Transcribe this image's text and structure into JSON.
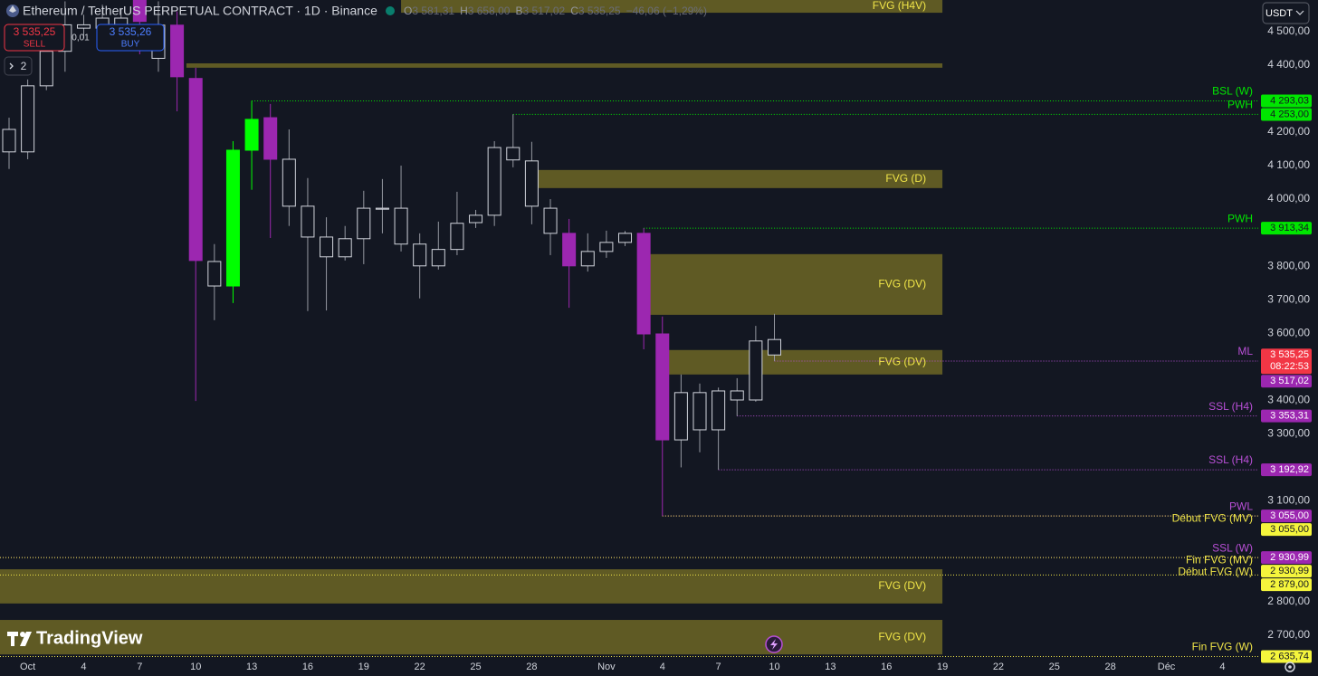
{
  "header": {
    "symbol": "Ethereum / TetherUS PERPETUAL CONTRACT · 1D · Binance",
    "ohlc": [
      {
        "key": "O",
        "value": "3 581,31"
      },
      {
        "key": "H",
        "value": "3 658,00"
      },
      {
        "key": "B",
        "value": "3 517,02"
      },
      {
        "key": "C",
        "value": "3 535,25"
      }
    ],
    "change": "−46,06 (−1,29%)"
  },
  "trade": {
    "sell_price": "3 535,25",
    "sell": "SELL",
    "spread": "0,01",
    "buy_price": "3 535,26",
    "buy": "BUY",
    "indicators": "2"
  },
  "currency": "USDT",
  "brand": "TradingView",
  "chart_data": {
    "type": "candlestick",
    "open": [
      4141,
      4141,
      4338,
      4441,
      4520,
      4510,
      4540,
      4600,
      4420,
      4519,
      4360,
      3741,
      3741,
      4146,
      4243,
      4119,
      3979,
      3887,
      3828,
      3882,
      3973,
      3973,
      3866,
      3801,
      3850,
      3930,
      3952,
      4154,
      4114,
      3973,
      3898,
      3801,
      3844,
      3871,
      3898,
      3598,
      3282,
      3423,
      3312,
      3428,
      3401,
      3581.31
    ],
    "high": [
      4243,
      4357,
      4487,
      4590,
      4550,
      4580,
      4570,
      4620,
      4590,
      4560,
      4392,
      3866,
      4173,
      4293.03,
      4284,
      4208,
      4063,
      3946,
      3920,
      4025,
      4060,
      4100,
      3898,
      3933,
      4022,
      3968,
      4173,
      4253,
      4171,
      4000,
      3941,
      3898,
      3906,
      3905,
      3913.34,
      3650,
      3477,
      3450,
      3438,
      3466,
      3622,
      3658
    ],
    "low": [
      4090,
      4119,
      4325,
      4380,
      4480,
      4490,
      4500,
      4432,
      4380,
      4262,
      3398,
      3639,
      3690,
      4028,
      3884,
      3920,
      3666,
      3668,
      3817,
      3806,
      3898,
      3844,
      3704,
      3790,
      3833,
      3914,
      3920,
      4095,
      3925,
      3833,
      3676,
      3784,
      3825,
      3860,
      3552,
      3055,
      3200,
      3245,
      3192.92,
      3353.31,
      3396,
      3517.02
    ],
    "close": [
      4208,
      4338,
      4441,
      4520,
      4510,
      4540,
      4520,
      4530,
      4519,
      4365,
      3817,
      3814,
      4146,
      4238,
      4119,
      3979,
      3887,
      3828,
      3882,
      3973,
      3970,
      3866,
      3801,
      3850,
      3928,
      3952,
      4154,
      4117,
      3979,
      3898,
      3801,
      3844,
      3871,
      3898,
      3598,
      3282,
      3423,
      3312,
      3428,
      3401,
      3577,
      3535.25
    ],
    "colors": [
      "#d1d4dc",
      "#d1d4dc",
      "#d1d4dc",
      "#d1d4dc",
      "#d1d4dc",
      "#d1d4dc",
      "#d1d4dc",
      "#9c27b0",
      "#d1d4dc",
      "#9c27b0",
      "#9c27b0",
      "#d1d4dc",
      "#00ff00",
      "#00ff00",
      "#9c27b0",
      "#d1d4dc",
      "#d1d4dc",
      "#d1d4dc",
      "#d1d4dc",
      "#d1d4dc",
      "#d1d4dc",
      "#d1d4dc",
      "#d1d4dc",
      "#d1d4dc",
      "#d1d4dc",
      "#d1d4dc",
      "#d1d4dc",
      "#d1d4dc",
      "#d1d4dc",
      "#d1d4dc",
      "#9c27b0",
      "#d1d4dc",
      "#d1d4dc",
      "#d1d4dc",
      "#9c27b0",
      "#9c27b0",
      "#d1d4dc",
      "#d1d4dc",
      "#d1d4dc",
      "#d1d4dc",
      "#d1d4dc",
      "#d1d4dc"
    ],
    "xlim": [
      -0.485,
      66.92
    ],
    "xticks": [
      {
        "value": 1,
        "label": "Oct"
      },
      {
        "value": 4,
        "label": "4"
      },
      {
        "value": 7,
        "label": "7"
      },
      {
        "value": 10,
        "label": "10"
      },
      {
        "value": 13,
        "label": "13"
      },
      {
        "value": 16,
        "label": "16"
      },
      {
        "value": 19,
        "label": "19"
      },
      {
        "value": 22,
        "label": "22"
      },
      {
        "value": 25,
        "label": "25"
      },
      {
        "value": 28,
        "label": "28"
      },
      {
        "value": 32,
        "label": "Nov"
      },
      {
        "value": 35,
        "label": "4"
      },
      {
        "value": 38,
        "label": "7"
      },
      {
        "value": 41,
        "label": "10"
      },
      {
        "value": 44,
        "label": "13"
      },
      {
        "value": 47,
        "label": "16"
      },
      {
        "value": 50,
        "label": "19"
      },
      {
        "value": 53,
        "label": "22"
      },
      {
        "value": 56,
        "label": "25"
      },
      {
        "value": 59,
        "label": "28"
      },
      {
        "value": 62,
        "label": "Déc"
      },
      {
        "value": 65,
        "label": "4"
      }
    ],
    "ylim": [
      2629,
      4594
    ],
    "yticks": [
      {
        "value": 4500,
        "label": "4 500,00"
      },
      {
        "value": 4400,
        "label": "4 400,00"
      },
      {
        "value": 4200,
        "label": "4 200,00"
      },
      {
        "value": 4100,
        "label": "4 100,00"
      },
      {
        "value": 4000,
        "label": "4 000,00"
      },
      {
        "value": 3800,
        "label": "3 800,00"
      },
      {
        "value": 3700,
        "label": "3 700,00"
      },
      {
        "value": 3600,
        "label": "3 600,00"
      },
      {
        "value": 3400,
        "label": "3 400,00"
      },
      {
        "value": 3300,
        "label": "3 300,00"
      },
      {
        "value": 3100,
        "label": "3 100,00"
      },
      {
        "value": 2800,
        "label": "2 800,00"
      },
      {
        "value": 2700,
        "label": "2 700,00"
      }
    ],
    "grid": false,
    "zone_color": "#5f5a24",
    "zone_label_color": "#f0e548",
    "zones": [
      {
        "label": "FVG (H4V)",
        "top": 4594,
        "bottom": 4556,
        "start": 21,
        "end": 50
      },
      {
        "top": 4405,
        "bottom": 4392,
        "start": 9.5,
        "end": 50
      },
      {
        "label": "FVG (D)",
        "top": 4087,
        "bottom": 4033,
        "start": 28,
        "end": 50
      },
      {
        "label": "FVG (DV)",
        "top": 3836,
        "bottom": 3655,
        "start": 34.3,
        "end": 50
      },
      {
        "label": "FVG (DV)",
        "top": 3550,
        "bottom": 3477,
        "start": 35.3,
        "end": 50
      },
      {
        "label": "FVG (DV)",
        "top": 2896,
        "bottom": 2794,
        "start": -0.485,
        "end": 50
      },
      {
        "label": "FVG (DV)",
        "top": 2745,
        "bottom": 2642,
        "start": -0.485,
        "end": 50
      }
    ],
    "last": {
      "price": 3535.25,
      "label": "3 535,25",
      "countdown": "08:22:53",
      "color": "#f23645"
    },
    "levels": [
      {
        "label": "BSL (W)",
        "price": 4293.03,
        "price_label": "4 293,03",
        "start": 13,
        "color": "#00e600",
        "box_color": "#00e600",
        "box_text_color": "#131722"
      },
      {
        "label": "PWH",
        "price": 4253,
        "price_label": "4 253,00",
        "start": 27,
        "color": "#00e600",
        "box_color": "#00e600",
        "box_text_color": "#131722"
      },
      {
        "label": "PWH",
        "price": 3913.34,
        "price_label": "3 913,34",
        "start": 34,
        "color": "#00e600",
        "box_color": "#00e600",
        "box_text_color": "#131722"
      },
      {
        "label": "ML",
        "price": 3517.02,
        "price_label": "3 517,02",
        "start": 41,
        "color": "#b84fd6",
        "box_color": "#9c27b0",
        "box_text_color": "#ffffff"
      },
      {
        "label": "SSL (H4)",
        "price": 3353.31,
        "price_label": "3 353,31",
        "start": 39,
        "color": "#b84fd6",
        "box_color": "#9c27b0",
        "box_text_color": "#ffffff"
      },
      {
        "label": "SSL (H4)",
        "price": 3192.92,
        "price_label": "3 192,92",
        "start": 38,
        "color": "#b84fd6",
        "box_color": "#9c27b0",
        "box_text_color": "#ffffff"
      },
      {
        "label": "PWL",
        "price": 3055,
        "price_label": "3 055,00",
        "start": 35,
        "color": "#b84fd6",
        "box_color": "#9c27b0",
        "box_text_color": "#ffffff"
      },
      {
        "label": "Début FVG (MV)",
        "price": 3055,
        "price_label": "3 055,00",
        "start": 35,
        "color": "#f0e548",
        "box_color": "#f5f53c",
        "box_text_color": "#131722"
      },
      {
        "label": "SSL (W)",
        "price": 2930.99,
        "price_label": "2 930,99",
        "start": -0.485,
        "color": "#b84fd6",
        "box_color": "#9c27b0",
        "box_text_color": "#ffffff"
      },
      {
        "label": "Fin FVG (MV)",
        "price": 2930.99,
        "price_label": "2 930,99",
        "start": -0.485,
        "color": "#f0e548",
        "box_color": "#f5f53c",
        "box_text_color": "#131722"
      },
      {
        "label": "Début FVG (W)",
        "price": 2879,
        "price_label": "2 879,00",
        "start": -0.485,
        "color": "#f0e548",
        "box_color": "#f5f53c",
        "box_text_color": "#131722"
      },
      {
        "label": "Fin FVG (W)",
        "price": 2635.74,
        "price_label": "2 635,74",
        "start": -0.485,
        "color": "#f0e548",
        "box_color": "#f5f53c",
        "box_text_color": "#131722"
      }
    ]
  }
}
